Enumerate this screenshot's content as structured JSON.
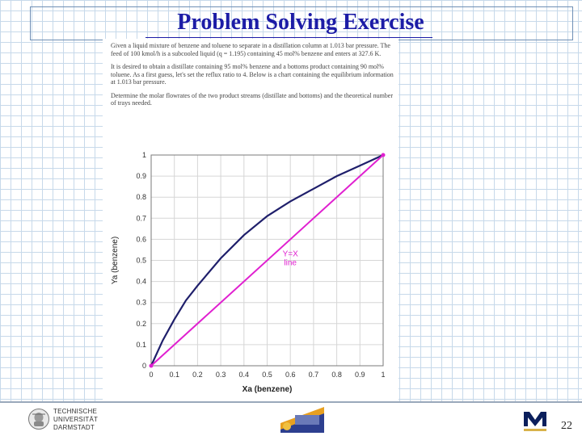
{
  "slide": {
    "title": "Problem Solving Exercise",
    "page_number": "22"
  },
  "problem_text": {
    "p1": "Given a liquid mixture of benzene and toluene to separate in a distillation column at 1.013 bar pressure. The feed of 100 kmol/h is a subcooled liquid (q = 1.195) containing 45 mol% benzene and enters at 327.6 K.",
    "p2": "It is desired to obtain a distillate containing 95 mol% benzene and a bottoms product containing 90 mol% toluene. As a first guess, let's set the reflux ratio to 4. Below is a chart containing the equilibrium information at 1.013 bar pressure.",
    "p3": "Determine the molar flowrates of the two product streams (distillate and bottoms) and the theoretical number of trays needed."
  },
  "logos": {
    "tud_line1": "TECHNISCHE",
    "tud_line2": "UNIVERSITÄT",
    "tud_line3": "DARMSTADT"
  },
  "colors": {
    "equilibrium_curve": "#1f1f6b",
    "yx_line": "#e020d0",
    "title": "#1c1ca6"
  },
  "chart_data": {
    "type": "line",
    "xlabel": "Xa (benzene)",
    "ylabel": "Ya (benzene)",
    "xlim": [
      0,
      1
    ],
    "ylim": [
      0,
      1
    ],
    "grid": true,
    "x_ticks": [
      "0",
      "0.1",
      "0.2",
      "0.3",
      "0.4",
      "0.5",
      "0.6",
      "0.7",
      "0.8",
      "0.9",
      "1"
    ],
    "y_ticks": [
      "0",
      "0.1",
      "0.2",
      "0.3",
      "0.4",
      "0.5",
      "0.6",
      "0.7",
      "0.8",
      "0.9",
      "1"
    ],
    "annotations": [
      {
        "text_line1": "Y=X",
        "text_line2": "line",
        "x": 0.6,
        "y": 0.52
      }
    ],
    "series": [
      {
        "x": [
          0,
          0.05,
          0.1,
          0.15,
          0.2,
          0.3,
          0.4,
          0.5,
          0.6,
          0.7,
          0.8,
          0.9,
          1.0
        ],
        "y": [
          0,
          0.12,
          0.22,
          0.31,
          0.38,
          0.51,
          0.62,
          0.71,
          0.78,
          0.84,
          0.9,
          0.95,
          1.0
        ]
      },
      {
        "x": [
          0,
          1
        ],
        "y": [
          0,
          1
        ]
      }
    ]
  }
}
